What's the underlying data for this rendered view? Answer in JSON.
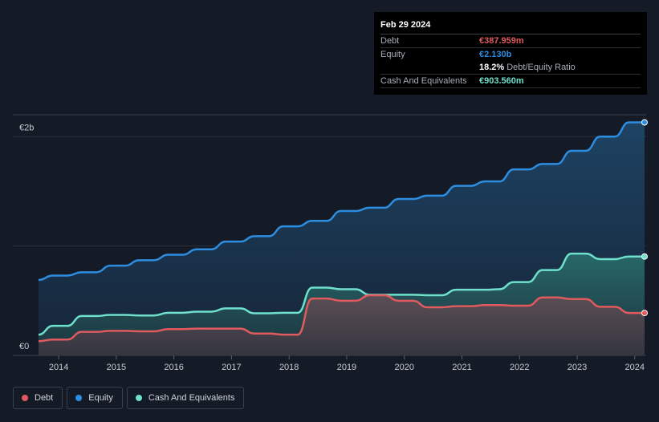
{
  "tooltip": {
    "date": "Feb 29 2024",
    "debt_label": "Debt",
    "debt_value": "€387.959m",
    "equity_label": "Equity",
    "equity_value": "€2.130b",
    "ratio_value": "18.2%",
    "ratio_label": "Debt/Equity Ratio",
    "cash_label": "Cash And Equivalents",
    "cash_value": "€903.560m"
  },
  "colors": {
    "debt": "#e05a5e",
    "equity": "#2d8de0",
    "cash": "#6fe0cc",
    "background": "#151b26"
  },
  "legend": [
    {
      "label": "Debt",
      "color": "#e05a5e"
    },
    {
      "label": "Equity",
      "color": "#2d8de0"
    },
    {
      "label": "Cash And Equivalents",
      "color": "#6fe0cc"
    }
  ],
  "chart_data": {
    "type": "area",
    "y_unit": "€m",
    "ylim": [
      0,
      2200
    ],
    "y_tick_labels": [
      {
        "value": 0,
        "label": "€0"
      },
      {
        "value": 2000,
        "label": "€2b"
      }
    ],
    "gridlines": [
      1000,
      2000
    ],
    "x_domain": [
      2013.65,
      2024.17
    ],
    "x_ticks": [
      2014,
      2015,
      2016,
      2017,
      2018,
      2019,
      2020,
      2021,
      2022,
      2023,
      2024
    ],
    "series": [
      {
        "name": "Equity",
        "key": "equity",
        "points": [
          [
            2013.65,
            690
          ],
          [
            2013.9,
            730
          ],
          [
            2014.15,
            730
          ],
          [
            2014.4,
            760
          ],
          [
            2014.65,
            760
          ],
          [
            2014.9,
            820
          ],
          [
            2015.15,
            820
          ],
          [
            2015.4,
            870
          ],
          [
            2015.65,
            870
          ],
          [
            2015.9,
            920
          ],
          [
            2016.15,
            920
          ],
          [
            2016.4,
            970
          ],
          [
            2016.65,
            970
          ],
          [
            2016.9,
            1040
          ],
          [
            2017.15,
            1040
          ],
          [
            2017.4,
            1090
          ],
          [
            2017.65,
            1090
          ],
          [
            2017.9,
            1180
          ],
          [
            2018.15,
            1180
          ],
          [
            2018.4,
            1230
          ],
          [
            2018.65,
            1230
          ],
          [
            2018.9,
            1320
          ],
          [
            2019.15,
            1320
          ],
          [
            2019.4,
            1350
          ],
          [
            2019.65,
            1350
          ],
          [
            2019.9,
            1430
          ],
          [
            2020.15,
            1430
          ],
          [
            2020.4,
            1460
          ],
          [
            2020.65,
            1460
          ],
          [
            2020.9,
            1550
          ],
          [
            2021.15,
            1550
          ],
          [
            2021.4,
            1590
          ],
          [
            2021.65,
            1590
          ],
          [
            2021.9,
            1700
          ],
          [
            2022.15,
            1700
          ],
          [
            2022.4,
            1750
          ],
          [
            2022.65,
            1750
          ],
          [
            2022.9,
            1870
          ],
          [
            2023.15,
            1870
          ],
          [
            2023.4,
            2000
          ],
          [
            2023.65,
            2000
          ],
          [
            2023.9,
            2130
          ],
          [
            2024.17,
            2130
          ]
        ]
      },
      {
        "name": "Cash And Equivalents",
        "key": "cash",
        "points": [
          [
            2013.65,
            190
          ],
          [
            2013.9,
            270
          ],
          [
            2014.15,
            270
          ],
          [
            2014.4,
            360
          ],
          [
            2014.65,
            360
          ],
          [
            2014.9,
            370
          ],
          [
            2015.15,
            370
          ],
          [
            2015.4,
            365
          ],
          [
            2015.65,
            365
          ],
          [
            2015.9,
            390
          ],
          [
            2016.15,
            390
          ],
          [
            2016.4,
            400
          ],
          [
            2016.65,
            400
          ],
          [
            2016.9,
            430
          ],
          [
            2017.15,
            430
          ],
          [
            2017.4,
            385
          ],
          [
            2017.65,
            385
          ],
          [
            2017.9,
            390
          ],
          [
            2018.15,
            390
          ],
          [
            2018.4,
            620
          ],
          [
            2018.65,
            620
          ],
          [
            2018.9,
            605
          ],
          [
            2019.15,
            605
          ],
          [
            2019.4,
            555
          ],
          [
            2019.65,
            555
          ],
          [
            2019.9,
            555
          ],
          [
            2020.15,
            555
          ],
          [
            2020.4,
            550
          ],
          [
            2020.65,
            550
          ],
          [
            2020.9,
            600
          ],
          [
            2021.15,
            600
          ],
          [
            2021.4,
            600
          ],
          [
            2021.65,
            605
          ],
          [
            2021.9,
            670
          ],
          [
            2022.15,
            670
          ],
          [
            2022.4,
            780
          ],
          [
            2022.65,
            780
          ],
          [
            2022.9,
            930
          ],
          [
            2023.15,
            930
          ],
          [
            2023.4,
            880
          ],
          [
            2023.65,
            880
          ],
          [
            2023.9,
            904
          ],
          [
            2024.17,
            904
          ]
        ]
      },
      {
        "name": "Debt",
        "key": "debt",
        "points": [
          [
            2013.65,
            130
          ],
          [
            2013.9,
            145
          ],
          [
            2014.15,
            145
          ],
          [
            2014.4,
            215
          ],
          [
            2014.65,
            215
          ],
          [
            2014.9,
            225
          ],
          [
            2015.15,
            225
          ],
          [
            2015.4,
            220
          ],
          [
            2015.65,
            220
          ],
          [
            2015.9,
            240
          ],
          [
            2016.15,
            240
          ],
          [
            2016.4,
            245
          ],
          [
            2016.65,
            245
          ],
          [
            2016.9,
            245
          ],
          [
            2017.15,
            245
          ],
          [
            2017.4,
            200
          ],
          [
            2017.65,
            200
          ],
          [
            2017.9,
            190
          ],
          [
            2018.15,
            190
          ],
          [
            2018.4,
            520
          ],
          [
            2018.65,
            520
          ],
          [
            2018.9,
            500
          ],
          [
            2019.15,
            500
          ],
          [
            2019.4,
            550
          ],
          [
            2019.65,
            550
          ],
          [
            2019.9,
            500
          ],
          [
            2020.15,
            500
          ],
          [
            2020.4,
            440
          ],
          [
            2020.65,
            440
          ],
          [
            2020.9,
            450
          ],
          [
            2021.15,
            450
          ],
          [
            2021.4,
            460
          ],
          [
            2021.65,
            460
          ],
          [
            2021.9,
            455
          ],
          [
            2022.15,
            455
          ],
          [
            2022.4,
            530
          ],
          [
            2022.65,
            530
          ],
          [
            2022.9,
            515
          ],
          [
            2023.15,
            515
          ],
          [
            2023.4,
            445
          ],
          [
            2023.65,
            445
          ],
          [
            2023.9,
            388
          ],
          [
            2024.17,
            388
          ]
        ]
      }
    ]
  }
}
